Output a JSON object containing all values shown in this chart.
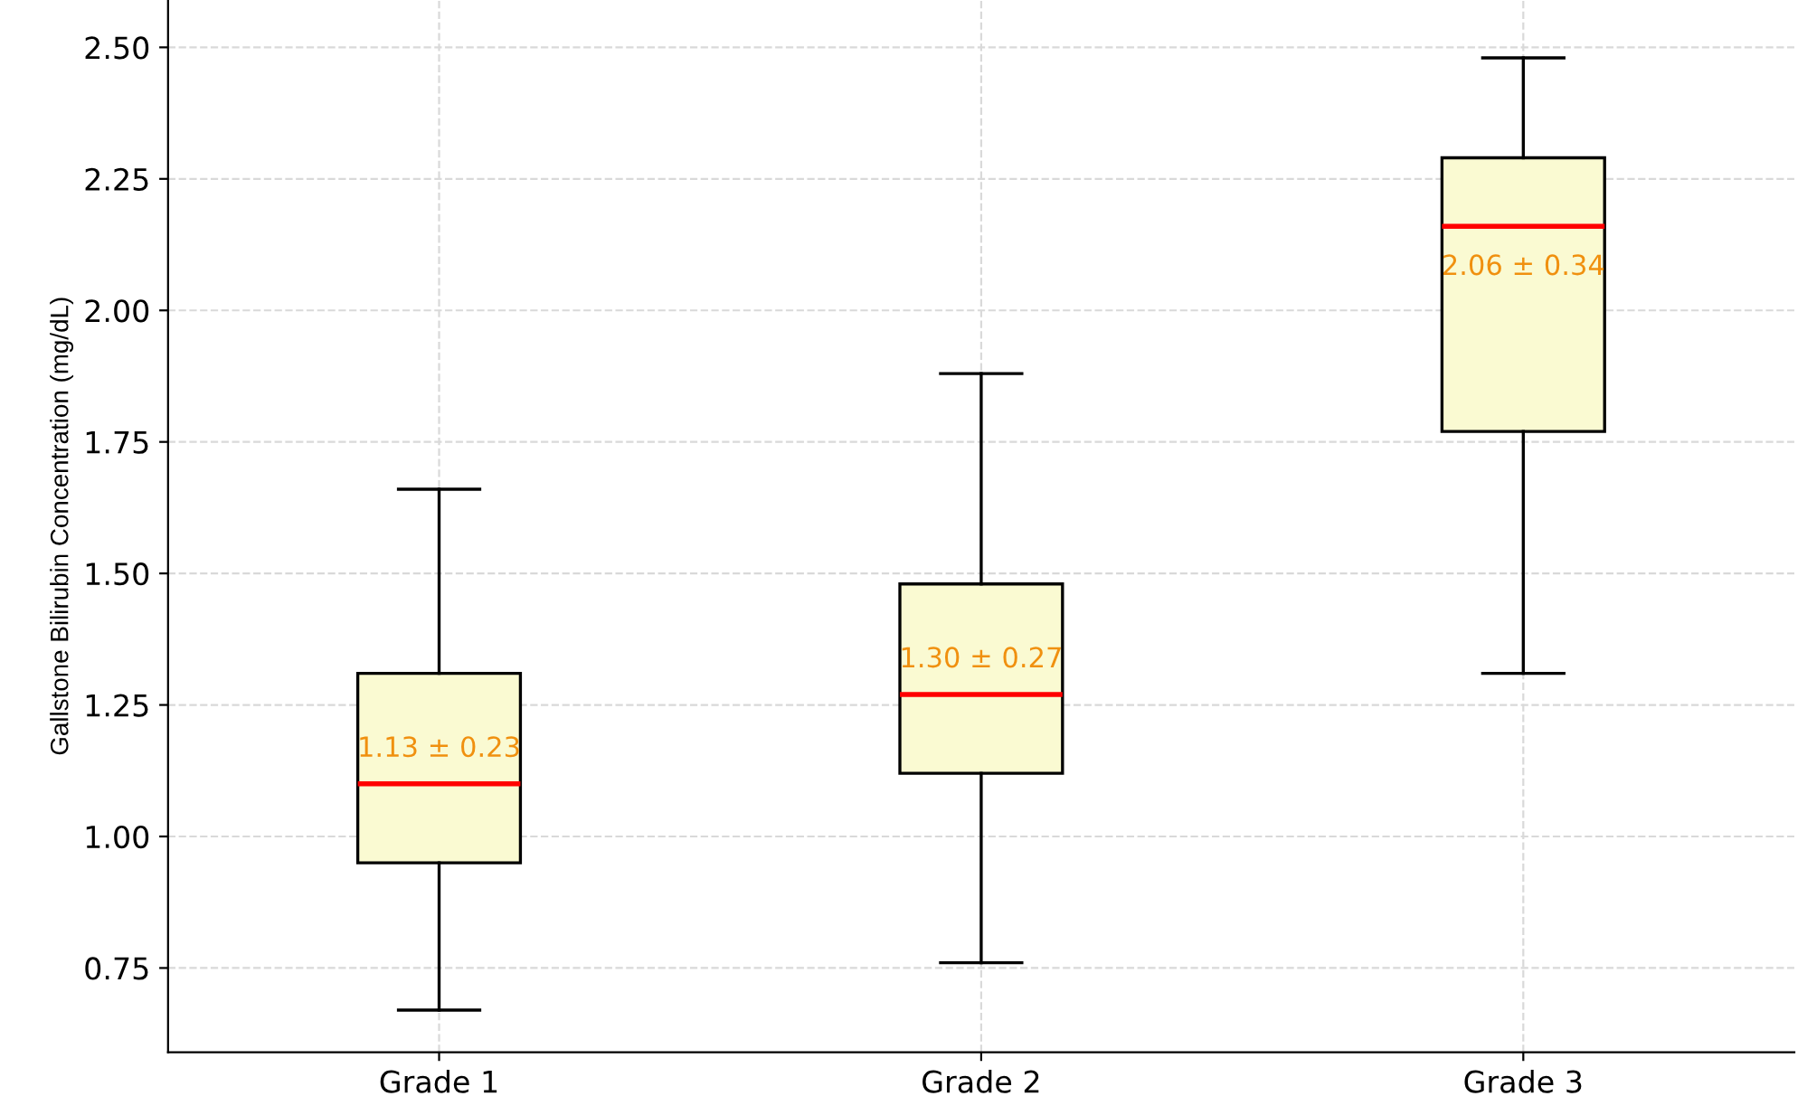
{
  "chart_data": {
    "type": "box",
    "ylabel": "Gallstone Bilirubin Concentration (mg/dL)",
    "categories": [
      "Grade 1",
      "Grade 2",
      "Grade 3"
    ],
    "boxes": [
      {
        "low": 0.67,
        "q1": 0.95,
        "median": 1.1,
        "q3": 1.31,
        "high": 1.66
      },
      {
        "low": 0.76,
        "q1": 1.12,
        "median": 1.27,
        "q3": 1.48,
        "high": 1.88
      },
      {
        "low": 1.31,
        "q1": 1.77,
        "median": 2.16,
        "q3": 2.29,
        "high": 2.48
      }
    ],
    "color": "#fafad2",
    "ylim": [
      0.59,
      2.59
    ],
    "yticks": [
      {
        "value": 0.75,
        "label": "0.75"
      },
      {
        "value": 1.0,
        "label": "1.00"
      },
      {
        "value": 1.25,
        "label": "1.25"
      },
      {
        "value": 1.5,
        "label": "1.50"
      },
      {
        "value": 1.75,
        "label": "1.75"
      },
      {
        "value": 2.0,
        "label": "2.00"
      },
      {
        "value": 2.25,
        "label": "2.25"
      },
      {
        "value": 2.5,
        "label": "2.50"
      }
    ],
    "grid": true,
    "annotations": [
      "1.13 ± 0.23",
      "1.30 ± 0.27",
      "2.06 ± 0.34"
    ]
  }
}
